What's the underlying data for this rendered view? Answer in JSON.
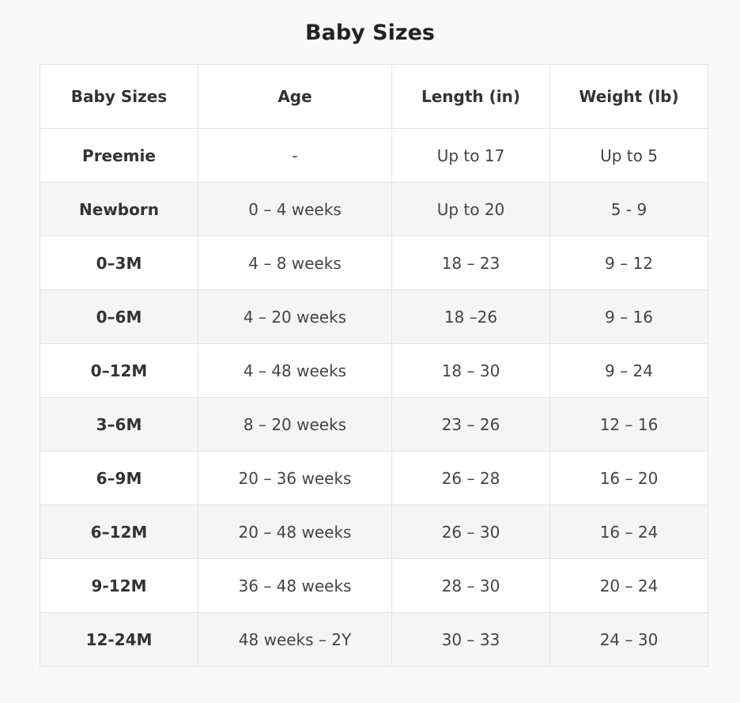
{
  "title": "Baby Sizes",
  "table": {
    "headers": [
      "Baby Sizes",
      "Age",
      "Length (in)",
      "Weight (lb)"
    ],
    "rows": [
      [
        "Preemie",
        "-",
        "Up to 17",
        "Up to 5"
      ],
      [
        "Newborn",
        "0 – 4 weeks",
        "Up to 20",
        "5 - 9"
      ],
      [
        "0–3M",
        "4 – 8 weeks",
        "18 – 23",
        "9 – 12"
      ],
      [
        "0–6M",
        "4 – 20 weeks",
        "18 –26",
        "9 – 16"
      ],
      [
        "0–12M",
        "4 – 48 weeks",
        "18 – 30",
        "9 – 24"
      ],
      [
        "3–6M",
        "8 – 20 weeks",
        "23 – 26",
        "12 – 16"
      ],
      [
        "6–9M",
        "20 – 36 weeks",
        "26 – 28",
        "16 – 20"
      ],
      [
        "6–12M",
        "20 – 48 weeks",
        "26 – 30",
        "16 – 24"
      ],
      [
        "9-12M",
        "36 – 48 weeks",
        "28 – 30",
        "20 – 24"
      ],
      [
        "12-24M",
        "48 weeks – 2Y",
        "30 – 33",
        "24 – 30"
      ]
    ]
  }
}
